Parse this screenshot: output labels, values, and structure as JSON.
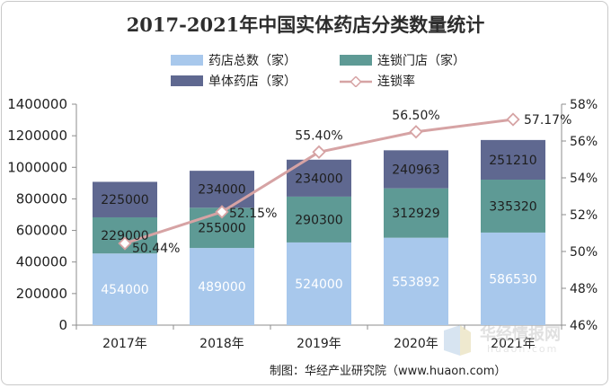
{
  "chart_data": {
    "type": "bar",
    "title": "2017-2021年中国实体药店分类数量统计",
    "categories": [
      "2017年",
      "2018年",
      "2019年",
      "2020年",
      "2021年"
    ],
    "series": [
      {
        "name": "药店总数（家）",
        "type": "bar",
        "values": [
          454000,
          489000,
          524000,
          553892,
          586530
        ],
        "color": "#a8c8ec"
      },
      {
        "name": "连锁门店（家）",
        "type": "bar",
        "values": [
          229000,
          255000,
          290300,
          312929,
          335320
        ],
        "color": "#5e9a95"
      },
      {
        "name": "单体药店（家）",
        "type": "bar",
        "values": [
          225000,
          234000,
          234000,
          240963,
          251210
        ],
        "color": "#5f6890"
      },
      {
        "name": "连锁率",
        "type": "line",
        "axis": "right",
        "values": [
          50.44,
          52.15,
          55.4,
          56.5,
          57.17
        ],
        "labels": [
          "50.44%",
          "52.15%",
          "55.40%",
          "56.50%",
          "57.17%"
        ],
        "color": "#d6a3a4"
      }
    ],
    "left_axis": {
      "ylim": [
        0,
        1400000
      ],
      "ticks": [
        "0",
        "200000",
        "400000",
        "600000",
        "800000",
        "1000000",
        "1200000",
        "1400000"
      ]
    },
    "right_axis": {
      "ylim": [
        46,
        58
      ],
      "ticks": [
        "46%",
        "48%",
        "50%",
        "52%",
        "54%",
        "56%",
        "58%"
      ]
    },
    "legend_position": "top",
    "grid": false
  },
  "source": "制图：华经产业研究院（www.huaon.com）",
  "watermark": {
    "text": "华经情报网",
    "sub": "huaon.com"
  }
}
